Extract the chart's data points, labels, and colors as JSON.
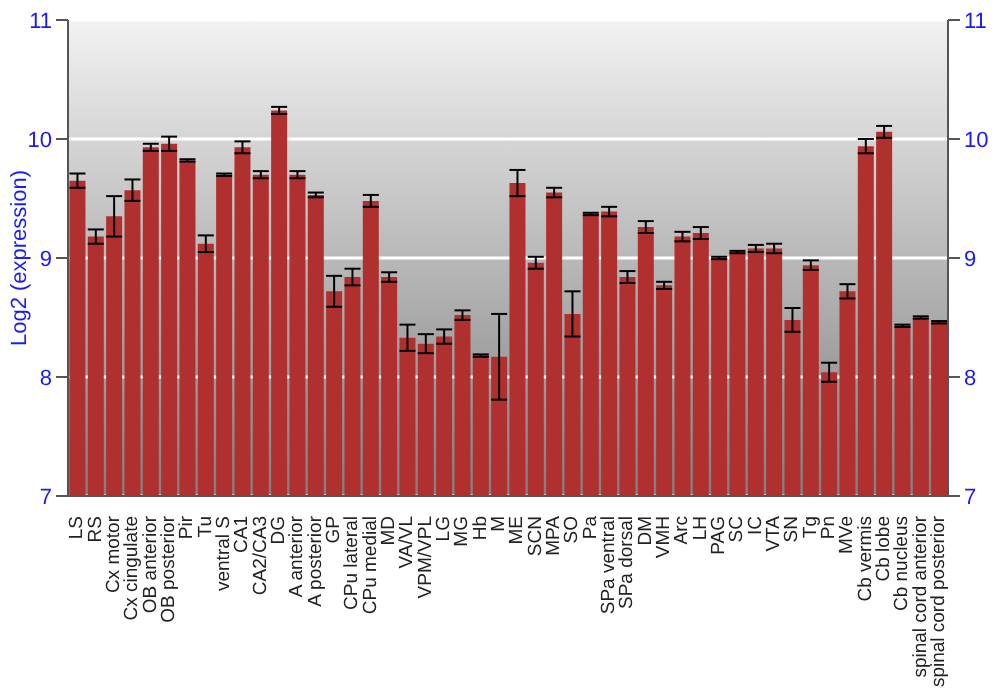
{
  "chart_data": {
    "type": "bar",
    "ylabel": "Log2 (expression)",
    "categories": [
      "LS",
      "RS",
      "Cx motor",
      "Cx cingulate",
      "OB anterior",
      "OB posterior",
      "Pir",
      "Tu",
      "ventral S",
      "CA1",
      "CA2/CA3",
      "DG",
      "A anterior",
      "A posterior",
      "GP",
      "CPu lateral",
      "CPu medial",
      "MD",
      "VA/VL",
      "VPM/VPL",
      "LG",
      "MG",
      "Hb",
      "M",
      "ME",
      "SCN",
      "MPA",
      "SO",
      "Pa",
      "SPa ventral",
      "SPa dorsal",
      "DM",
      "VMH",
      "Arc",
      "LH",
      "PAG",
      "SC",
      "IC",
      "VTA",
      "SN",
      "Tg",
      "Pn",
      "MVe",
      "Cb vermis",
      "Cb lobe",
      "Cb nucleus",
      "spinal cord anterior",
      "spinal cord posterior"
    ],
    "values": [
      9.65,
      9.18,
      9.35,
      9.57,
      9.93,
      9.96,
      9.82,
      9.12,
      9.7,
      9.93,
      9.7,
      10.24,
      9.7,
      9.53,
      8.72,
      8.84,
      9.48,
      8.84,
      8.33,
      8.28,
      8.34,
      8.52,
      8.18,
      8.17,
      9.63,
      8.96,
      9.55,
      8.53,
      9.37,
      9.39,
      8.84,
      9.26,
      8.77,
      9.18,
      9.21,
      9.0,
      9.05,
      9.08,
      9.08,
      8.48,
      8.94,
      8.04,
      8.72,
      9.94,
      10.06,
      8.43,
      8.5,
      8.46
    ],
    "errors": [
      0.06,
      0.06,
      0.17,
      0.09,
      0.03,
      0.06,
      0.01,
      0.07,
      0.01,
      0.05,
      0.03,
      0.03,
      0.03,
      0.02,
      0.13,
      0.07,
      0.05,
      0.04,
      0.11,
      0.08,
      0.06,
      0.04,
      0.01,
      0.36,
      0.11,
      0.05,
      0.04,
      0.19,
      0.01,
      0.04,
      0.05,
      0.05,
      0.03,
      0.04,
      0.05,
      0.01,
      0.01,
      0.03,
      0.04,
      0.1,
      0.04,
      0.08,
      0.06,
      0.06,
      0.05,
      0.01,
      0.01,
      0.01
    ],
    "color": "#b03030",
    "ylim": [
      7,
      11
    ],
    "yticks": [
      7,
      8,
      9,
      10,
      11
    ],
    "y2lim": [
      7,
      11
    ],
    "y2ticks": [
      7,
      8,
      9,
      10,
      11
    ],
    "grid": "y"
  }
}
